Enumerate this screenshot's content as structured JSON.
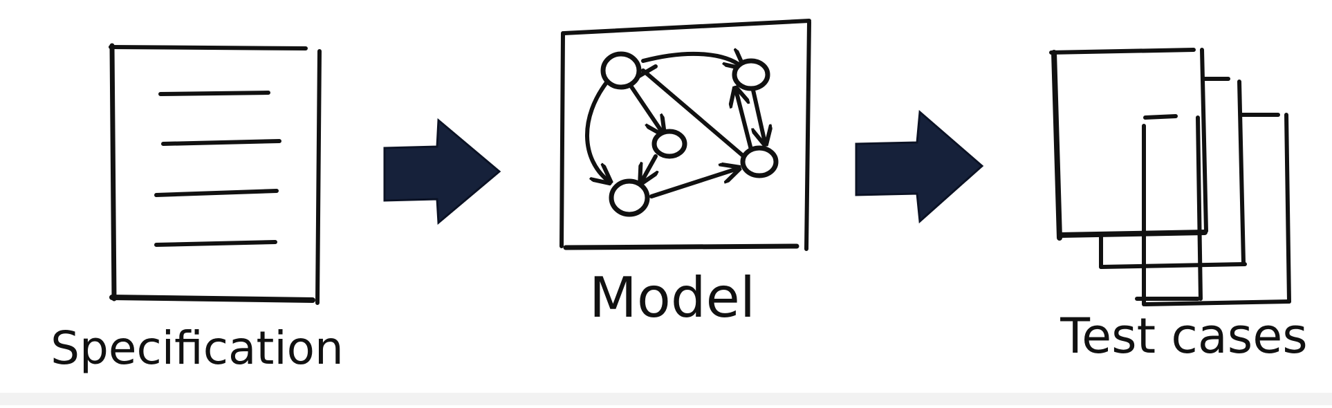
{
  "diagram": {
    "steps": [
      {
        "id": "specification",
        "label": "Specification",
        "icon": "document-icon"
      },
      {
        "id": "model",
        "label": "Model",
        "icon": "state-graph-icon"
      },
      {
        "id": "test-cases",
        "label": "Test cases",
        "icon": "stacked-pages-icon"
      }
    ],
    "connectors": [
      {
        "from": "specification",
        "to": "model",
        "icon": "right-arrow-icon"
      },
      {
        "from": "model",
        "to": "test-cases",
        "icon": "right-arrow-icon"
      }
    ],
    "colors": {
      "ink": "#111111",
      "arrow": "#16213a",
      "background": "#ffffff"
    }
  }
}
